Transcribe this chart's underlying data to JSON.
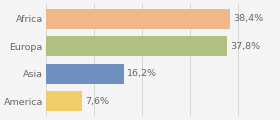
{
  "categories": [
    "America",
    "Asia",
    "Europa",
    "Africa"
  ],
  "values": [
    7.6,
    16.2,
    37.8,
    38.4
  ],
  "labels": [
    "7,6%",
    "16,2%",
    "37,8%",
    "38,4%"
  ],
  "colors": [
    "#f0cc6a",
    "#7090c0",
    "#afc080",
    "#f0b888"
  ],
  "background_color": "#f5f5f5",
  "xlim": [
    0,
    48
  ],
  "bar_height": 0.72,
  "label_fontsize": 6.8,
  "tick_fontsize": 6.8,
  "label_color": "#666666",
  "tick_color": "#666666"
}
